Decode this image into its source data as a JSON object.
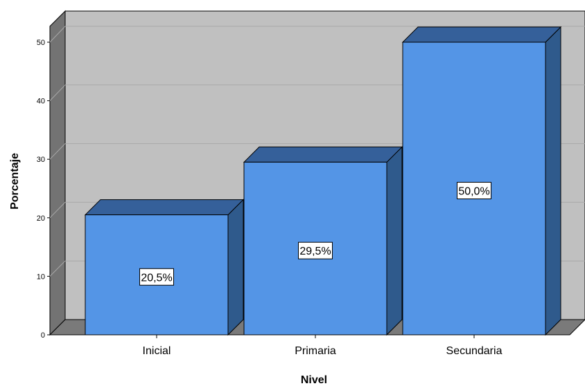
{
  "chart_data": {
    "type": "bar",
    "style": "3d-column",
    "categories": [
      "Inicial",
      "Primaria",
      "Secundaria"
    ],
    "values": [
      20.5,
      29.5,
      50.0
    ],
    "data_labels": [
      "20,5%",
      "29,5%",
      "50,0%"
    ],
    "xlabel": "Nivel",
    "ylabel": "Porcentaje",
    "ylim": [
      0,
      50
    ],
    "yticks": [
      0,
      10,
      20,
      30,
      40,
      50
    ],
    "grid": true,
    "colors": {
      "bar_front": "#5495E6",
      "bar_top": "#35609A",
      "bar_side": "#2F5A8C",
      "back_wall": "#C0C0C0",
      "left_wall": "#737373",
      "floor": "#7A7A7A",
      "gridline": "#A8A8A8"
    }
  }
}
